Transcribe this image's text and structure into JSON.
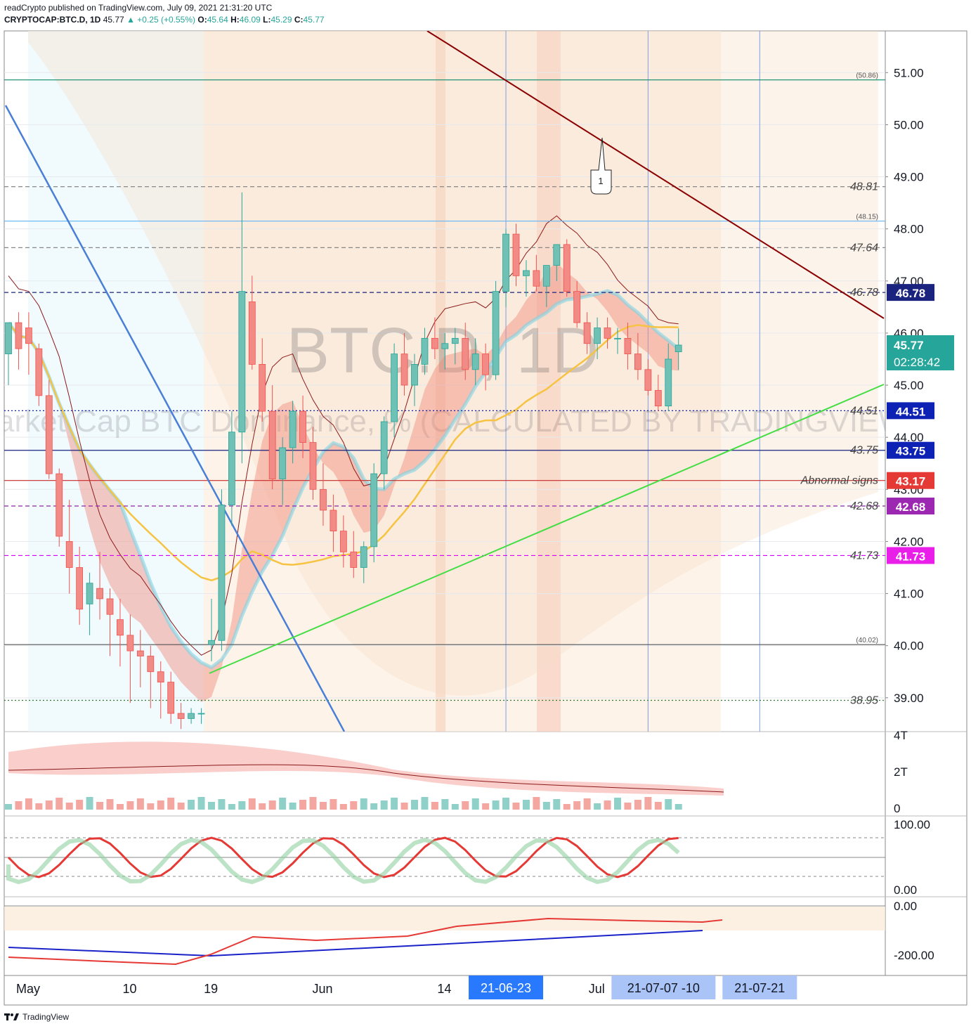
{
  "header": {
    "publish_line": "readCrypto published on TradingView.com, July 09, 2021 21:31:20 UTC",
    "symbol": "CRYPTOCAP:BTC.D, 1D",
    "last": "45.77",
    "change": "+0.25 (+0.55%)",
    "open_label": "O:",
    "open": "45.64",
    "high_label": "H:",
    "high": "46.09",
    "low_label": "L:",
    "low": "45.29",
    "close_label": "C:",
    "close": "45.77"
  },
  "watermark": {
    "symbol": "BTC.D, 1D",
    "description": "Market Cap BTC Dominance, % (CALCULATED BY TRADINGVIEW)"
  },
  "footer": {
    "brand": "TradingView"
  },
  "colors": {
    "up": "#26a69a",
    "down": "#ef5350",
    "upbody": "#6fc1b5",
    "downbody": "#f28b85",
    "grid": "#e6e9ee",
    "axis": "#555555"
  },
  "chart_data": {
    "type": "candlestick",
    "ylim": [
      38.35,
      51.8
    ],
    "y_ticks": [
      "39.00",
      "40.00",
      "41.00",
      "42.00",
      "43.00",
      "44.00",
      "45.00",
      "46.00",
      "47.00",
      "48.00",
      "49.00",
      "50.00",
      "51.00"
    ],
    "x_ticks": [
      "May",
      "10",
      "19",
      "Jun",
      "14",
      "Jul"
    ],
    "x_tick_index": [
      0,
      10,
      18,
      29,
      41,
      56
    ],
    "date_badges": [
      {
        "label": "21-06-23",
        "index": 49
      },
      {
        "label": "21-07-07  -10",
        "index": 63
      },
      {
        "label": "21-07-21",
        "index": 74
      }
    ],
    "candles": [
      {
        "o": 45.6,
        "h": 46.2,
        "l": 45.0,
        "c": 46.2
      },
      {
        "o": 46.2,
        "h": 46.4,
        "l": 45.3,
        "c": 45.7
      },
      {
        "o": 46.1,
        "h": 46.4,
        "l": 45.2,
        "c": 45.8
      },
      {
        "o": 45.7,
        "h": 45.8,
        "l": 44.6,
        "c": 44.8
      },
      {
        "o": 44.8,
        "h": 45.1,
        "l": 43.2,
        "c": 43.3
      },
      {
        "o": 43.3,
        "h": 43.4,
        "l": 41.9,
        "c": 42.1
      },
      {
        "o": 42.0,
        "h": 42.8,
        "l": 41.0,
        "c": 41.5
      },
      {
        "o": 41.5,
        "h": 41.9,
        "l": 40.4,
        "c": 40.7
      },
      {
        "o": 40.8,
        "h": 41.4,
        "l": 40.2,
        "c": 41.2
      },
      {
        "o": 41.1,
        "h": 41.8,
        "l": 40.5,
        "c": 40.9
      },
      {
        "o": 40.9,
        "h": 41.1,
        "l": 39.8,
        "c": 40.6
      },
      {
        "o": 40.5,
        "h": 40.9,
        "l": 39.6,
        "c": 40.2
      },
      {
        "o": 40.2,
        "h": 40.6,
        "l": 38.9,
        "c": 39.9
      },
      {
        "o": 39.9,
        "h": 40.3,
        "l": 39.2,
        "c": 39.8
      },
      {
        "o": 39.8,
        "h": 40.0,
        "l": 38.8,
        "c": 39.5
      },
      {
        "o": 39.5,
        "h": 39.7,
        "l": 38.6,
        "c": 39.3
      },
      {
        "o": 39.3,
        "h": 39.5,
        "l": 38.5,
        "c": 38.7
      },
      {
        "o": 38.7,
        "h": 38.9,
        "l": 38.4,
        "c": 38.6
      },
      {
        "o": 38.6,
        "h": 38.8,
        "l": 38.5,
        "c": 38.7
      },
      {
        "o": 38.7,
        "h": 38.8,
        "l": 38.5,
        "c": 38.7
      },
      {
        "o": 40.02,
        "h": 40.9,
        "l": 39.7,
        "c": 40.1
      },
      {
        "o": 40.1,
        "h": 43.0,
        "l": 39.9,
        "c": 42.7
      },
      {
        "o": 42.7,
        "h": 44.5,
        "l": 42.3,
        "c": 44.1
      },
      {
        "o": 44.1,
        "h": 48.7,
        "l": 43.5,
        "c": 46.8
      },
      {
        "o": 46.6,
        "h": 47.1,
        "l": 45.3,
        "c": 45.4
      },
      {
        "o": 45.4,
        "h": 45.9,
        "l": 44.3,
        "c": 44.5
      },
      {
        "o": 44.5,
        "h": 45.0,
        "l": 43.0,
        "c": 43.2
      },
      {
        "o": 43.2,
        "h": 44.0,
        "l": 42.7,
        "c": 43.8
      },
      {
        "o": 43.8,
        "h": 44.7,
        "l": 43.5,
        "c": 44.5
      },
      {
        "o": 44.5,
        "h": 44.8,
        "l": 43.6,
        "c": 43.9
      },
      {
        "o": 43.9,
        "h": 44.2,
        "l": 42.8,
        "c": 43.0
      },
      {
        "o": 43.0,
        "h": 43.5,
        "l": 42.3,
        "c": 42.6
      },
      {
        "o": 42.6,
        "h": 42.9,
        "l": 41.8,
        "c": 42.2
      },
      {
        "o": 42.2,
        "h": 42.5,
        "l": 41.5,
        "c": 41.8
      },
      {
        "o": 41.8,
        "h": 42.2,
        "l": 41.3,
        "c": 41.5
      },
      {
        "o": 41.5,
        "h": 42.0,
        "l": 41.2,
        "c": 41.9
      },
      {
        "o": 41.9,
        "h": 43.5,
        "l": 41.6,
        "c": 43.3
      },
      {
        "o": 43.3,
        "h": 44.4,
        "l": 43.0,
        "c": 44.3
      },
      {
        "o": 44.3,
        "h": 45.8,
        "l": 44.0,
        "c": 45.6
      },
      {
        "o": 45.6,
        "h": 46.0,
        "l": 44.8,
        "c": 45.0
      },
      {
        "o": 45.0,
        "h": 45.6,
        "l": 44.6,
        "c": 45.4
      },
      {
        "o": 45.4,
        "h": 46.1,
        "l": 45.2,
        "c": 45.9
      },
      {
        "o": 45.9,
        "h": 46.3,
        "l": 45.5,
        "c": 45.7
      },
      {
        "o": 45.7,
        "h": 46.0,
        "l": 45.3,
        "c": 45.8
      },
      {
        "o": 45.8,
        "h": 46.1,
        "l": 45.4,
        "c": 45.9
      },
      {
        "o": 45.9,
        "h": 46.2,
        "l": 45.1,
        "c": 45.3
      },
      {
        "o": 45.3,
        "h": 45.9,
        "l": 45.0,
        "c": 45.6
      },
      {
        "o": 45.6,
        "h": 45.8,
        "l": 44.9,
        "c": 45.2
      },
      {
        "o": 45.2,
        "h": 47.0,
        "l": 45.1,
        "c": 46.8
      },
      {
        "o": 46.8,
        "h": 48.0,
        "l": 46.5,
        "c": 47.9
      },
      {
        "o": 47.9,
        "h": 48.1,
        "l": 46.9,
        "c": 47.1
      },
      {
        "o": 47.1,
        "h": 47.4,
        "l": 46.7,
        "c": 47.2
      },
      {
        "o": 47.2,
        "h": 47.5,
        "l": 46.8,
        "c": 46.9
      },
      {
        "o": 46.9,
        "h": 47.3,
        "l": 46.5,
        "c": 47.3
      },
      {
        "o": 47.3,
        "h": 47.7,
        "l": 47.0,
        "c": 47.7
      },
      {
        "o": 47.7,
        "h": 47.8,
        "l": 46.7,
        "c": 46.8
      },
      {
        "o": 46.8,
        "h": 47.0,
        "l": 46.1,
        "c": 46.2
      },
      {
        "o": 46.2,
        "h": 46.4,
        "l": 45.6,
        "c": 45.8
      },
      {
        "o": 45.8,
        "h": 46.3,
        "l": 45.5,
        "c": 46.1
      },
      {
        "o": 46.1,
        "h": 46.3,
        "l": 45.7,
        "c": 45.9
      },
      {
        "o": 45.9,
        "h": 46.1,
        "l": 45.6,
        "c": 45.9
      },
      {
        "o": 45.9,
        "h": 46.2,
        "l": 45.3,
        "c": 45.6
      },
      {
        "o": 45.6,
        "h": 46.0,
        "l": 45.1,
        "c": 45.3
      },
      {
        "o": 45.3,
        "h": 45.5,
        "l": 44.8,
        "c": 44.9
      },
      {
        "o": 44.9,
        "h": 45.2,
        "l": 44.5,
        "c": 44.6
      },
      {
        "o": 44.6,
        "h": 45.8,
        "l": 44.5,
        "c": 45.5
      },
      {
        "o": 45.64,
        "h": 46.09,
        "l": 45.29,
        "c": 45.77
      }
    ],
    "horizontal_levels": [
      {
        "value": 50.86,
        "label": "(50.86)",
        "style": "solid",
        "color": "#0d8a6a"
      },
      {
        "value": 48.81,
        "label": "48.81",
        "style": "dashed",
        "color": "#888888"
      },
      {
        "value": 48.15,
        "label": "(48.15)",
        "style": "solid",
        "color": "#64b5f6"
      },
      {
        "value": 47.64,
        "label": "47.64",
        "style": "dashed",
        "color": "#888888"
      },
      {
        "value": 46.78,
        "label": "46.78",
        "style": "dashed",
        "color": "#1a237e"
      },
      {
        "value": 44.51,
        "label": "44.51",
        "style": "dotted",
        "color": "#0d21b5"
      },
      {
        "value": 43.75,
        "label": "43.75",
        "style": "solid",
        "color": "#1a237e"
      },
      {
        "value": 43.17,
        "label": "Abnormal signs",
        "style": "solid",
        "color": "#c62828"
      },
      {
        "value": 42.68,
        "label": "42.68",
        "style": "dashed",
        "color": "#8e24aa"
      },
      {
        "value": 41.73,
        "label": "41.73",
        "style": "dashed",
        "color": "#d500f9"
      },
      {
        "value": 40.02,
        "label": "(40.02)",
        "style": "solid",
        "color": "#555555"
      },
      {
        "value": 38.95,
        "label": "38.95",
        "style": "dotted",
        "color": "#2e7d32"
      }
    ],
    "price_badges": [
      {
        "value": 46.78,
        "label": "46.78",
        "color": "#1a237e"
      },
      {
        "value": 44.51,
        "label": "44.51",
        "color": "#0d21b5"
      },
      {
        "value": 43.75,
        "label": "43.75",
        "color": "#0d21b5"
      },
      {
        "value": 43.17,
        "label": "43.17",
        "color": "#e53935"
      },
      {
        "value": 42.68,
        "label": "42.68",
        "color": "#9c27b0"
      },
      {
        "value": 41.73,
        "label": "41.73",
        "color": "#e91ee8"
      }
    ],
    "last_price_badge": {
      "value": 45.77,
      "label": "45.77",
      "countdown": "02:28:42",
      "color": "#26a69a"
    },
    "annotation_label": "1",
    "volume_axis": [
      "4T",
      "2T",
      "0"
    ],
    "oscillator_axis": [
      "100.00",
      "0.00"
    ],
    "bottom_axis": [
      "0.00",
      "-200.00"
    ]
  }
}
